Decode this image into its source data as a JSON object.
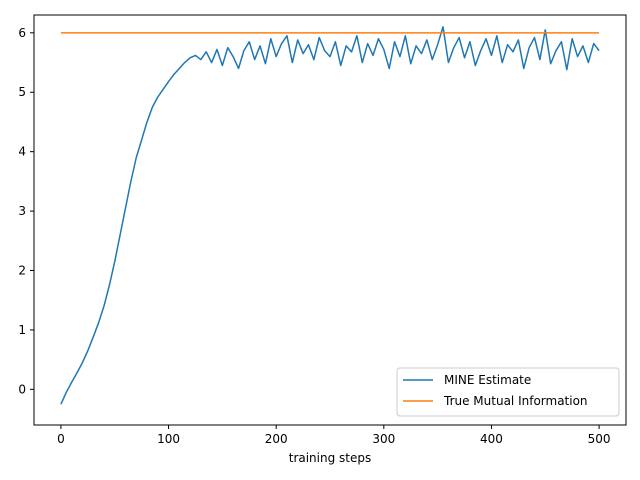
{
  "chart_data": {
    "type": "line",
    "title": "",
    "xlabel": "training steps",
    "ylabel": "",
    "xlim": [
      -25,
      525
    ],
    "ylim": [
      -0.6,
      6.3
    ],
    "xticks": [
      0,
      100,
      200,
      300,
      400,
      500
    ],
    "xtick_labels": [
      "0",
      "100",
      "200",
      "300",
      "400",
      "500"
    ],
    "yticks": [
      0,
      1,
      2,
      3,
      4,
      5,
      6
    ],
    "ytick_labels": [
      "0",
      "1",
      "2",
      "3",
      "4",
      "5",
      "6"
    ],
    "grid": false,
    "legend": {
      "position": "lower-right",
      "entries": [
        "MINE Estimate",
        "True Mutual Information"
      ]
    },
    "series": [
      {
        "name": "MINE Estimate",
        "color": "#1f77b4",
        "x": [
          0,
          5,
          10,
          15,
          20,
          25,
          30,
          35,
          40,
          45,
          50,
          55,
          60,
          65,
          70,
          75,
          80,
          85,
          90,
          95,
          100,
          105,
          110,
          115,
          120,
          125,
          130,
          135,
          140,
          145,
          150,
          155,
          160,
          165,
          170,
          175,
          180,
          185,
          190,
          195,
          200,
          205,
          210,
          215,
          220,
          225,
          230,
          235,
          240,
          245,
          250,
          255,
          260,
          265,
          270,
          275,
          280,
          285,
          290,
          295,
          300,
          305,
          310,
          315,
          320,
          325,
          330,
          335,
          340,
          345,
          350,
          355,
          360,
          365,
          370,
          375,
          380,
          385,
          390,
          395,
          400,
          405,
          410,
          415,
          420,
          425,
          430,
          435,
          440,
          445,
          450,
          455,
          460,
          465,
          470,
          475,
          480,
          485,
          490,
          495,
          500
        ],
        "y": [
          -0.25,
          -0.05,
          0.12,
          0.28,
          0.45,
          0.65,
          0.88,
          1.12,
          1.4,
          1.75,
          2.15,
          2.6,
          3.05,
          3.5,
          3.9,
          4.2,
          4.5,
          4.75,
          4.92,
          5.05,
          5.18,
          5.3,
          5.4,
          5.5,
          5.58,
          5.62,
          5.55,
          5.68,
          5.5,
          5.72,
          5.45,
          5.75,
          5.6,
          5.4,
          5.7,
          5.85,
          5.55,
          5.78,
          5.48,
          5.9,
          5.6,
          5.82,
          5.95,
          5.5,
          5.88,
          5.65,
          5.8,
          5.55,
          5.92,
          5.7,
          5.6,
          5.85,
          5.45,
          5.78,
          5.68,
          5.95,
          5.5,
          5.82,
          5.62,
          5.9,
          5.72,
          5.4,
          5.85,
          5.6,
          5.95,
          5.48,
          5.78,
          5.65,
          5.88,
          5.55,
          5.8,
          6.1,
          5.5,
          5.75,
          5.92,
          5.58,
          5.85,
          5.45,
          5.7,
          5.9,
          5.62,
          5.95,
          5.5,
          5.8,
          5.68,
          5.88,
          5.4,
          5.75,
          5.92,
          5.55,
          6.05,
          5.48,
          5.7,
          5.85,
          5.38,
          5.9,
          5.6,
          5.78,
          5.5,
          5.82,
          5.7
        ]
      },
      {
        "name": "True Mutual Information",
        "color": "#ff7f0e",
        "x": [
          0,
          500
        ],
        "y": [
          6.0,
          6.0
        ]
      }
    ]
  }
}
